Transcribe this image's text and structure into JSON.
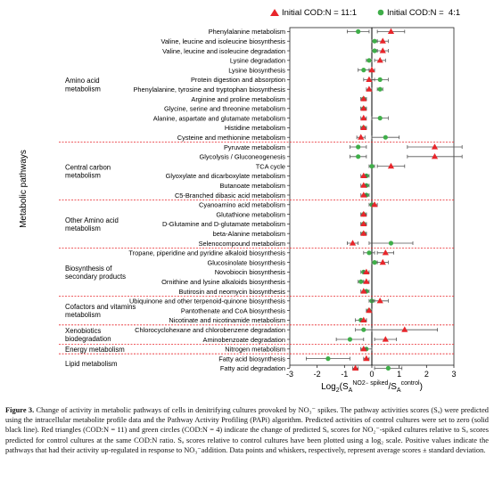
{
  "figure": {
    "y_axis_title": "Metabolic pathways",
    "x_axis_title": "Log₂(Sₐᴺᴼ² ˢᵖᶦᵏᵉᵈ/Sₐᶜᵒⁿᵗʳᵒˡ)",
    "x_axis_title_parts": {
      "main": "Log",
      "sub1": "2",
      "open": "(S",
      "subA": "A",
      "sup1": "NO2",
      "sup1b": "−",
      "sup1c": " spiked",
      "slash": "/S",
      "subA2": "A",
      "sup2": "control",
      "close": ")"
    }
  },
  "caption": {
    "label": "Figure 3.",
    "text": " Change of activity in metabolic pathways of cells in denitrifying cultures provoked by NO₃⁻ spikes. The pathway activities scores (Sₐ) were predicted using the intracellular metabolite profile data and the Pathway Activity Profiling (PAPi) algorithm. Predicted activities of control cultures were set to zero (solid black line). Red triangles (COD:N = 11) and green circles (COD:N = 4) indicate the change of predicted Sₐ scores for NO₂⁻-spiked cultures relative to Sₐ scores predicted for control cultures at the same COD:N ratio. Sₐ scores relative to control cultures have been plotted using a log₂ scale. Positive values indicate the pathways that had their activity up-regulated in response to NO₃⁻addition. Data points and whiskers, respectively, represent average scores ± standard deviation."
  },
  "chart_data": {
    "type": "scatter",
    "orientation": "horizontal",
    "xlim": [
      -3,
      3
    ],
    "x_ticks": [
      "-3",
      "-2",
      "-1",
      "0",
      "1",
      "2",
      "3"
    ],
    "reference_line_x": 0,
    "legend": {
      "placement": "top",
      "entries": [
        {
          "label": "Initial COD:N = 11:1",
          "marker": "triangle",
          "color": "#e8262b"
        },
        {
          "label": "Initial COD:N =  4:1",
          "marker": "circle",
          "color": "#3fae49"
        }
      ]
    },
    "groups": [
      {
        "label": "Amino acid\nmetabolism",
        "pathways": [
          "Phenylalanine metabolism",
          "Valine, leucine and isoleucine biosynthesis",
          "Valine, leucine and isoleucine degradation",
          "Lysine degradation",
          "Lysine biosynthesis",
          "Protein digestion and absorption",
          "Phenylalanine, tyrosine and tryptophan biosynthesis",
          "Arginine and proline metabolism",
          "Glycine, serine and threonine metabolism",
          "Alanine, aspartate and glutamate metabolism",
          "Histidine metabolism",
          "Cysteine and methionine metabolism"
        ]
      },
      {
        "label": "Central carbon\nmetabolism",
        "pathways": [
          "Pyruvate metabolism",
          "Glycolysis / Gluconeogenesis",
          "TCA cycle",
          "Glyoxylate and dicarboxylate metabolism",
          "Butanoate metabolism",
          "C5-Branched dibasic acid metabolism"
        ]
      },
      {
        "label": "Other Amino acid\nmetabolism",
        "pathways": [
          "Cyanoamino acid metabolism",
          "Glutathione metabolism",
          "D-Glutamine and D-glutamate metabolism",
          "beta-Alanine metabolism",
          "Selenocompound metabolism"
        ]
      },
      {
        "label": "Biosynthesis of\nsecondary products",
        "pathways": [
          "Tropane, piperidine and pyridine alkaloid biosynthesis",
          "Glucosinolate biosynthesis",
          "Novobiocin biosynthesis",
          "Ornithine and lysine alkaloids biosynthesis",
          "Butirosin and neomycin biosynthesis"
        ]
      },
      {
        "label": "Cofactors and vitamins\nmetabolism",
        "pathways": [
          "Ubiquinone and other terpenoid-quinone biosynthesis",
          "Pantothenate and CoA biosynthesis",
          "Nicotinate and nicotinamide metabolism"
        ]
      },
      {
        "label": "Xenobiotics\nbiodegradation",
        "pathways": [
          "Chlorocyclohexane and chlorobenzene degradation",
          "Aminobenzoate degradation"
        ]
      },
      {
        "label": "Energy metabolism",
        "pathways": [
          "Nitrogen metabolism"
        ]
      },
      {
        "label": "Lipid metabolism",
        "pathways": [
          "Fatty acid biosynthesis",
          "Fatty acid degradation"
        ]
      }
    ],
    "series": [
      {
        "name": "Initial COD:N = 11:1",
        "values": [
          0.7,
          0.4,
          0.4,
          0.3,
          0.0,
          -0.1,
          -0.1,
          -0.3,
          -0.3,
          -0.3,
          -0.3,
          -0.4,
          2.3,
          2.3,
          0.7,
          -0.3,
          -0.3,
          -0.3,
          0.1,
          -0.3,
          -0.3,
          -0.3,
          -0.7,
          0.5,
          0.4,
          -0.2,
          -0.2,
          -0.3,
          0.3,
          -0.1,
          -0.3,
          1.2,
          0.5,
          -0.3,
          -0.2,
          -0.6
        ],
        "errors": [
          0.5,
          0.2,
          0.2,
          0.2,
          0.1,
          0.2,
          0.1,
          0.1,
          0.1,
          0.1,
          0.1,
          0.15,
          1.0,
          1.0,
          0.5,
          0.1,
          0.1,
          0.1,
          0.1,
          0.1,
          0.1,
          0.1,
          0.2,
          0.3,
          0.2,
          0.1,
          0.1,
          0.1,
          0.3,
          0.1,
          0.1,
          1.2,
          0.4,
          0.1,
          0.1,
          0.1
        ]
      },
      {
        "name": "Initial COD:N =  4:1",
        "values": [
          -0.5,
          0.1,
          0.1,
          -0.1,
          -0.3,
          0.3,
          0.3,
          -0.3,
          -0.3,
          0.3,
          -0.3,
          0.5,
          -0.5,
          -0.5,
          0.0,
          -0.2,
          -0.2,
          -0.2,
          0.0,
          -0.3,
          -0.3,
          -0.3,
          0.7,
          -0.1,
          0.1,
          -0.3,
          -0.4,
          -0.2,
          0.0,
          -0.1,
          -0.4,
          -0.3,
          -0.8,
          -0.2,
          -1.6,
          0.6
        ],
        "errors": [
          0.4,
          0.1,
          0.1,
          0.1,
          0.2,
          0.3,
          0.1,
          0.1,
          0.1,
          0.3,
          0.1,
          0.5,
          0.3,
          0.3,
          0.1,
          0.1,
          0.1,
          0.1,
          0.1,
          0.1,
          0.1,
          0.1,
          0.8,
          0.2,
          0.1,
          0.1,
          0.1,
          0.1,
          0.1,
          0.1,
          0.2,
          0.3,
          0.5,
          0.2,
          0.8,
          0.5
        ]
      }
    ]
  }
}
